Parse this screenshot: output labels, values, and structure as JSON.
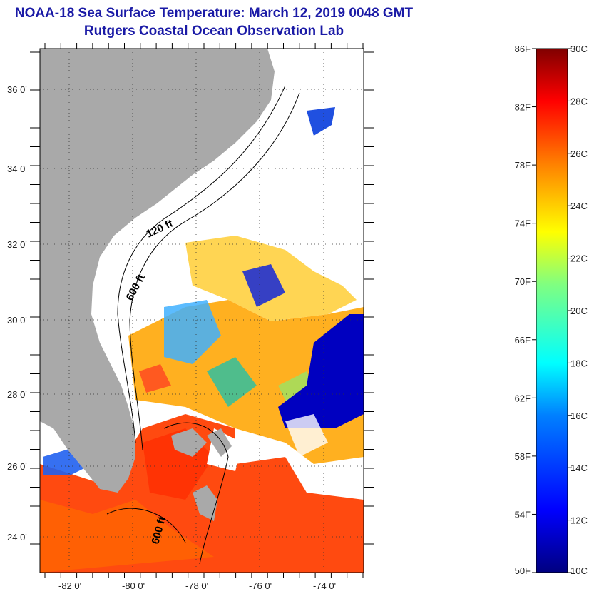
{
  "header": {
    "title": "NOAA-18 Sea Surface Temperature:  March 12, 2019 0048 GMT",
    "subtitle": "Rutgers Coastal Ocean Observation Lab"
  },
  "map": {
    "lat_labels": [
      "36 0'",
      "34 0'",
      "32 0'",
      "30 0'",
      "28 0'",
      "26 0'",
      "24 0'"
    ],
    "lon_labels": [
      "-82 0'",
      "-80 0'",
      "-78 0'",
      "-76 0'",
      "-74 0'"
    ],
    "contour_labels": [
      "120 ft",
      "600 ft",
      "600 ft"
    ],
    "land_color": "#a9a9a9",
    "cloud_color": "#ffffff"
  },
  "colorbar": {
    "fahrenheit_labels": [
      "86F",
      "82F",
      "78F",
      "74F",
      "70F",
      "66F",
      "62F",
      "58F",
      "54F",
      "50F"
    ],
    "celsius_labels": [
      "30C",
      "28C",
      "26C",
      "24C",
      "22C",
      "20C",
      "18C",
      "16C",
      "14C",
      "12C",
      "10C"
    ],
    "colors": [
      "#000080",
      "#0000ff",
      "#0080ff",
      "#00ffff",
      "#80ff80",
      "#ffff00",
      "#ff8000",
      "#ff0000",
      "#800000"
    ]
  }
}
